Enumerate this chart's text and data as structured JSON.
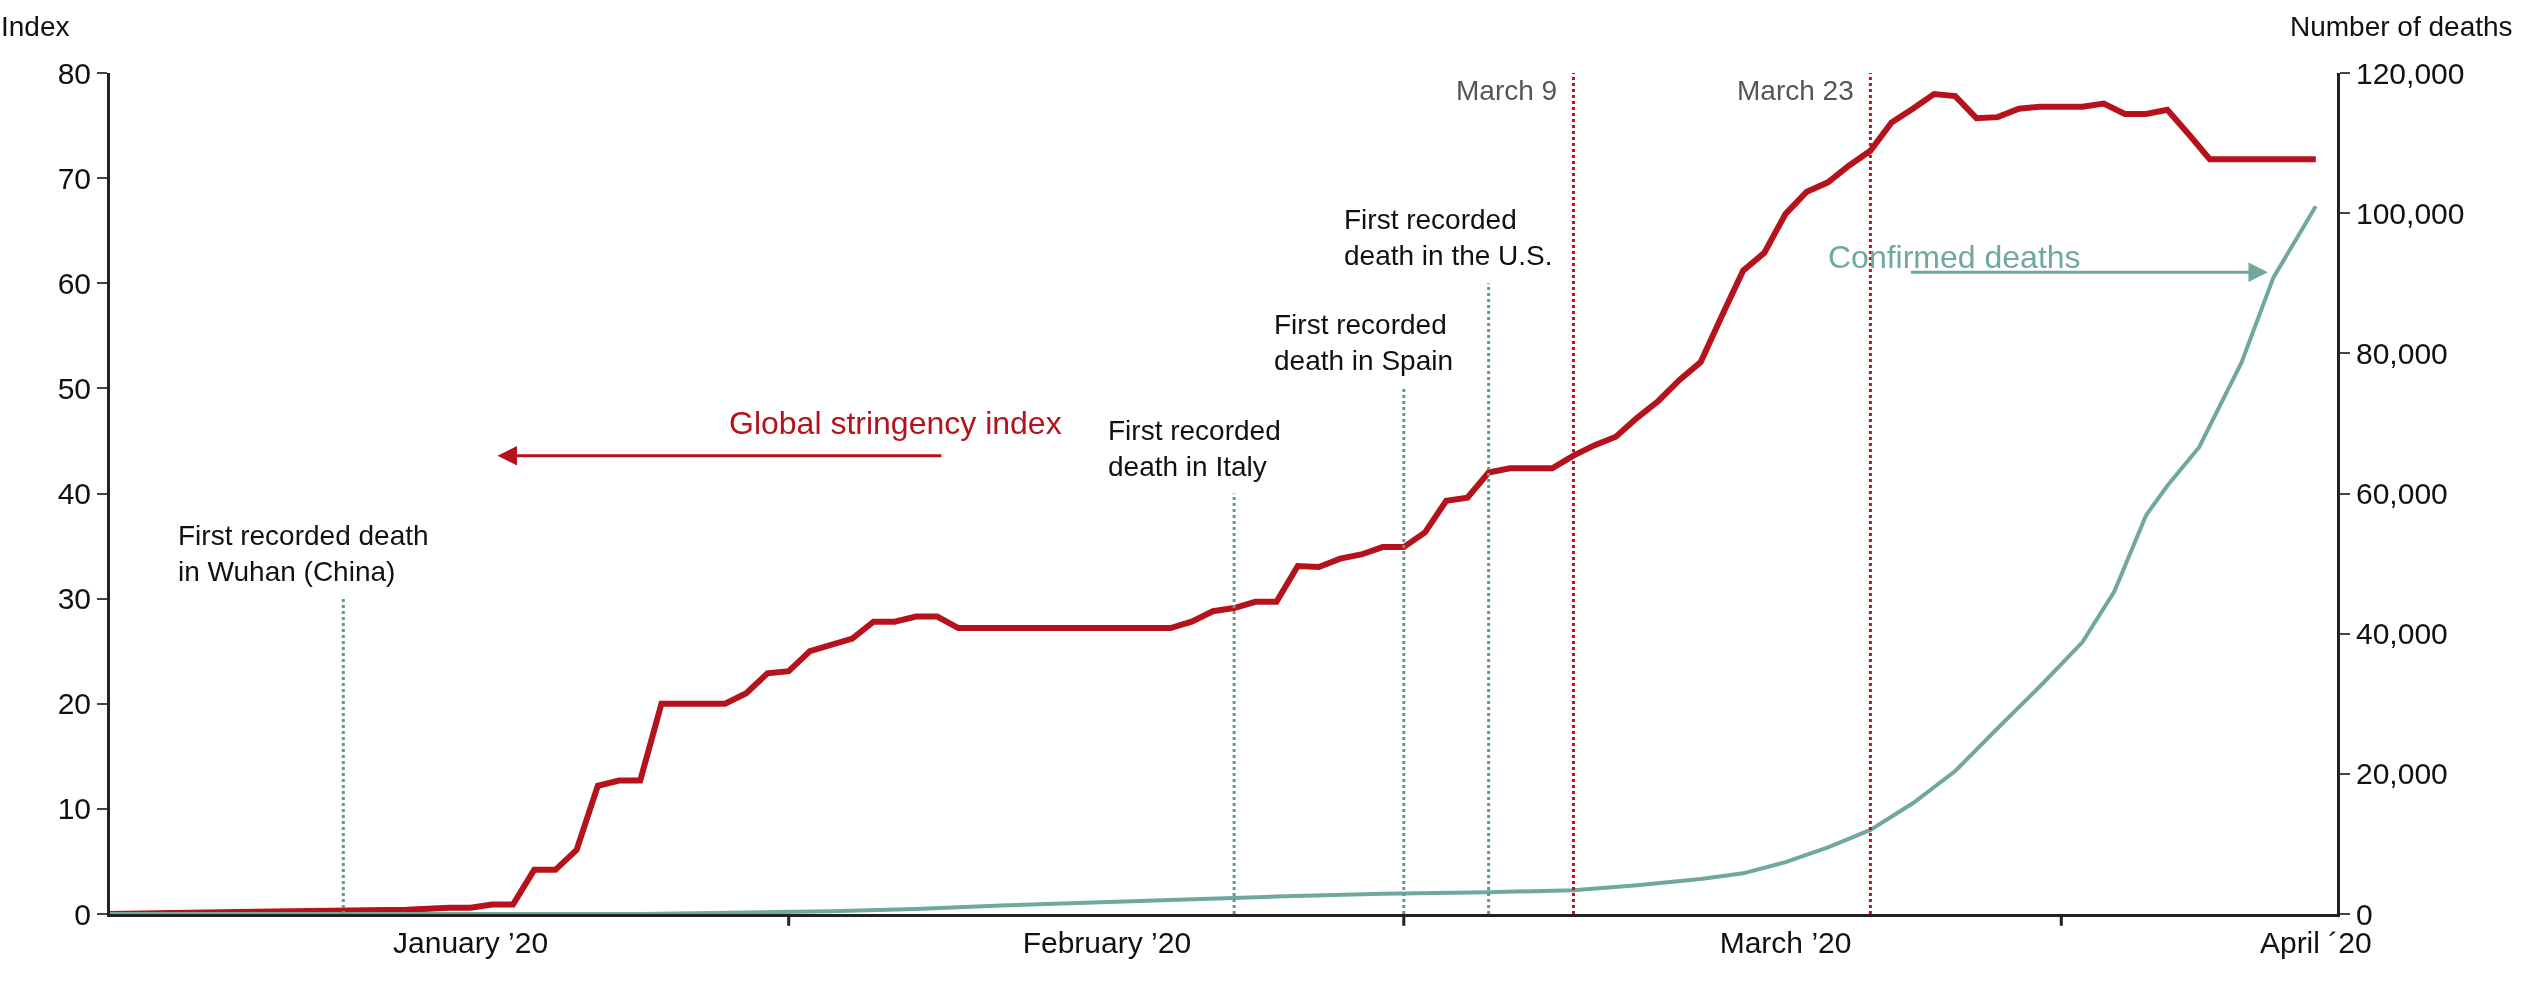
{
  "chart_data": {
    "type": "line",
    "ylabel": "Index",
    "y2label": "Number of deaths",
    "xlim": [
      "2019-12-31",
      "2020-04-14"
    ],
    "xticks": [
      {
        "value": "2020-02-01",
        "label": null
      },
      {
        "value": "2020-03-01",
        "label": null
      },
      {
        "value": "2020-04-01",
        "label": null
      },
      {
        "value": "2020-01-17",
        "label": "January ’20"
      },
      {
        "value": "2020-02-16",
        "label": "February ’20"
      },
      {
        "value": "2020-03-19",
        "label": "March ’20"
      },
      {
        "value": "2020-04-13",
        "label": "April ´20"
      }
    ],
    "ylim": [
      0,
      80
    ],
    "yticks": [
      0,
      10,
      20,
      30,
      40,
      50,
      60,
      70,
      80
    ],
    "y2lim": [
      0,
      120000
    ],
    "y2ticks": [
      {
        "value": 0,
        "label": "0"
      },
      {
        "value": 20000,
        "label": "20,000"
      },
      {
        "value": 40000,
        "label": "40,000"
      },
      {
        "value": 60000,
        "label": "60,000"
      },
      {
        "value": 80000,
        "label": "80,000"
      },
      {
        "value": 100000,
        "label": "100,000"
      },
      {
        "value": 120000,
        "label": "120,000"
      }
    ],
    "legend": false,
    "marker": "none",
    "line_style": "solid",
    "series": [
      {
        "name": "Global stringency index",
        "color": "#b5121b",
        "x": [
          "2019-12-31",
          "2020-01-06",
          "2020-01-14",
          "2020-01-16",
          "2020-01-17",
          "2020-01-18",
          "2020-01-19",
          "2020-01-20",
          "2020-01-21",
          "2020-01-22",
          "2020-01-23",
          "2020-01-24",
          "2020-01-25",
          "2020-01-26",
          "2020-01-29",
          "2020-01-30",
          "2020-01-31",
          "2020-02-01",
          "2020-02-02",
          "2020-02-04",
          "2020-02-05",
          "2020-02-06",
          "2020-02-07",
          "2020-02-08",
          "2020-02-09",
          "2020-02-19",
          "2020-02-20",
          "2020-02-21",
          "2020-02-22",
          "2020-02-23",
          "2020-02-24",
          "2020-02-25",
          "2020-02-26",
          "2020-02-27",
          "2020-02-28",
          "2020-02-29",
          "2020-03-01",
          "2020-03-02",
          "2020-03-03",
          "2020-03-04",
          "2020-03-05",
          "2020-03-06",
          "2020-03-08",
          "2020-03-09",
          "2020-03-10",
          "2020-03-11",
          "2020-03-12",
          "2020-03-13",
          "2020-03-14",
          "2020-03-15",
          "2020-03-16",
          "2020-03-17",
          "2020-03-18",
          "2020-03-19",
          "2020-03-20",
          "2020-03-21",
          "2020-03-22",
          "2020-03-23",
          "2020-03-24",
          "2020-03-25",
          "2020-03-26",
          "2020-03-27",
          "2020-03-28",
          "2020-03-29",
          "2020-03-30",
          "2020-03-31",
          "2020-04-02",
          "2020-04-03",
          "2020-04-04",
          "2020-04-05",
          "2020-04-06",
          "2020-04-07",
          "2020-04-08",
          "2020-04-13"
        ],
        "values": [
          0,
          0.2,
          0.4,
          0.6,
          0.6,
          0.9,
          0.9,
          4.2,
          4.2,
          6.1,
          12.2,
          12.7,
          12.7,
          20,
          20,
          21,
          22.9,
          23.1,
          25,
          26.2,
          27.8,
          27.8,
          28.3,
          28.3,
          27.2,
          27.2,
          27.8,
          28.8,
          29.1,
          29.7,
          29.7,
          33.1,
          33,
          33.8,
          34.2,
          34.9,
          34.9,
          36.3,
          39.3,
          39.6,
          42,
          42.4,
          42.4,
          43.6,
          44.6,
          45.4,
          47.2,
          48.8,
          50.8,
          52.5,
          56.9,
          61.2,
          62.9,
          66.6,
          68.7,
          69.6,
          71.2,
          72.6,
          75.3,
          76.6,
          78,
          77.8,
          75.7,
          75.8,
          76.6,
          76.8,
          76.8,
          77.1,
          76.1,
          76.1,
          76.5,
          74.2,
          71.8,
          71.8
        ]
      },
      {
        "name": "Confirmed deaths",
        "color": "#70a8a0",
        "axis": "y2",
        "x": [
          "2019-12-31",
          "2020-01-20",
          "2020-01-25",
          "2020-01-30",
          "2020-02-03",
          "2020-02-07",
          "2020-02-11",
          "2020-02-15",
          "2020-02-19",
          "2020-02-24",
          "2020-02-29",
          "2020-03-05",
          "2020-03-09",
          "2020-03-12",
          "2020-03-15",
          "2020-03-17",
          "2020-03-19",
          "2020-03-21",
          "2020-03-23",
          "2020-03-25",
          "2020-03-27",
          "2020-03-29",
          "2020-03-31",
          "2020-04-02",
          "2020-04-03T12:00",
          "2020-04-05",
          "2020-04-06",
          "2020-04-07T12:00",
          "2020-04-09T12:00",
          "2020-04-11",
          "2020-04-13"
        ],
        "values": [
          0,
          0,
          0,
          200,
          400,
          700,
          1200,
          1600,
          2000,
          2500,
          2900,
          3100,
          3400,
          4100,
          5000,
          5800,
          7400,
          9500,
          12000,
          15800,
          20400,
          26500,
          32500,
          38800,
          46000,
          56900,
          61100,
          66600,
          78700,
          90800,
          101000
        ]
      }
    ],
    "ref_lines": [
      {
        "axis": "x",
        "value": "2020-03-09",
        "label": "March 9",
        "color": "#c0141c",
        "line_style": "dotted"
      },
      {
        "axis": "x",
        "value": "2020-03-23",
        "label": "March 23",
        "color": "#c0141c",
        "line_style": "dotted"
      },
      {
        "axis": "x",
        "value": "2020-01-11",
        "label": "First recorded death\nin Wuhan (China)",
        "color": "#5f9a93",
        "line_style": "dotted"
      },
      {
        "axis": "x",
        "value": "2020-02-22",
        "label": "First recorded\ndeath in Italy",
        "color": "#5f9a93",
        "line_style": "dotted"
      },
      {
        "axis": "x",
        "value": "2020-03-01",
        "label": "First recorded\ndeath in Spain",
        "color": "#5f9a93",
        "line_style": "dotted"
      },
      {
        "axis": "x",
        "value": "2020-03-05",
        "label": "First recorded\ndeath in the U.S.",
        "color": "#5f9a93",
        "line_style": "dotted"
      }
    ]
  }
}
